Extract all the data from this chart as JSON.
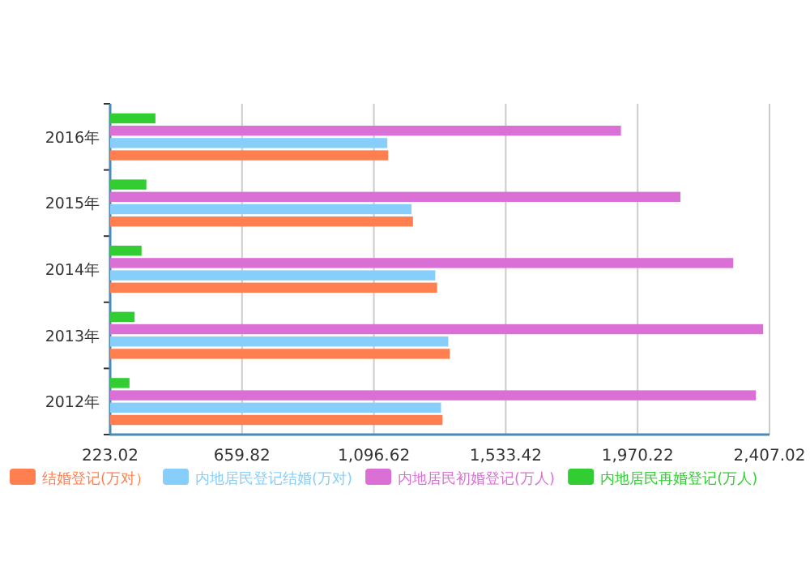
{
  "chart_data": {
    "type": "bar",
    "orientation": "horizontal",
    "categories": [
      "2016年",
      "2015年",
      "2014年",
      "2013年",
      "2012年"
    ],
    "series": [
      {
        "name": "结婚登记(万对）",
        "color": "#ff7f50",
        "values": [
          1144,
          1226,
          1306,
          1348,
          1324
        ]
      },
      {
        "name": "内地居民登记结婚(万对)",
        "color": "#87cefa",
        "values": [
          1141,
          1221,
          1300,
          1343,
          1319
        ]
      },
      {
        "name": "内地居民初婚登记(万人)",
        "color": "#da70d6",
        "values": [
          1915,
          2112,
          2287,
          2386,
          2362
        ]
      },
      {
        "name": "内地居民再婚登记(万人)",
        "color": "#32cd32",
        "values": [
          373,
          343,
          327,
          304,
          287
        ]
      }
    ],
    "xlim": [
      223.02,
      2407.02
    ],
    "xticks": [
      223.02,
      659.82,
      {
        "value": 1096.62,
        "label": "1,096.62"
      },
      {
        "value": 1533.42,
        "label": "1,533.42"
      },
      {
        "value": 1970.22,
        "label": "1,970.22"
      },
      {
        "value": 2407.02,
        "label": "2,407.02"
      }
    ],
    "grid": "x",
    "legend": "bottom"
  }
}
